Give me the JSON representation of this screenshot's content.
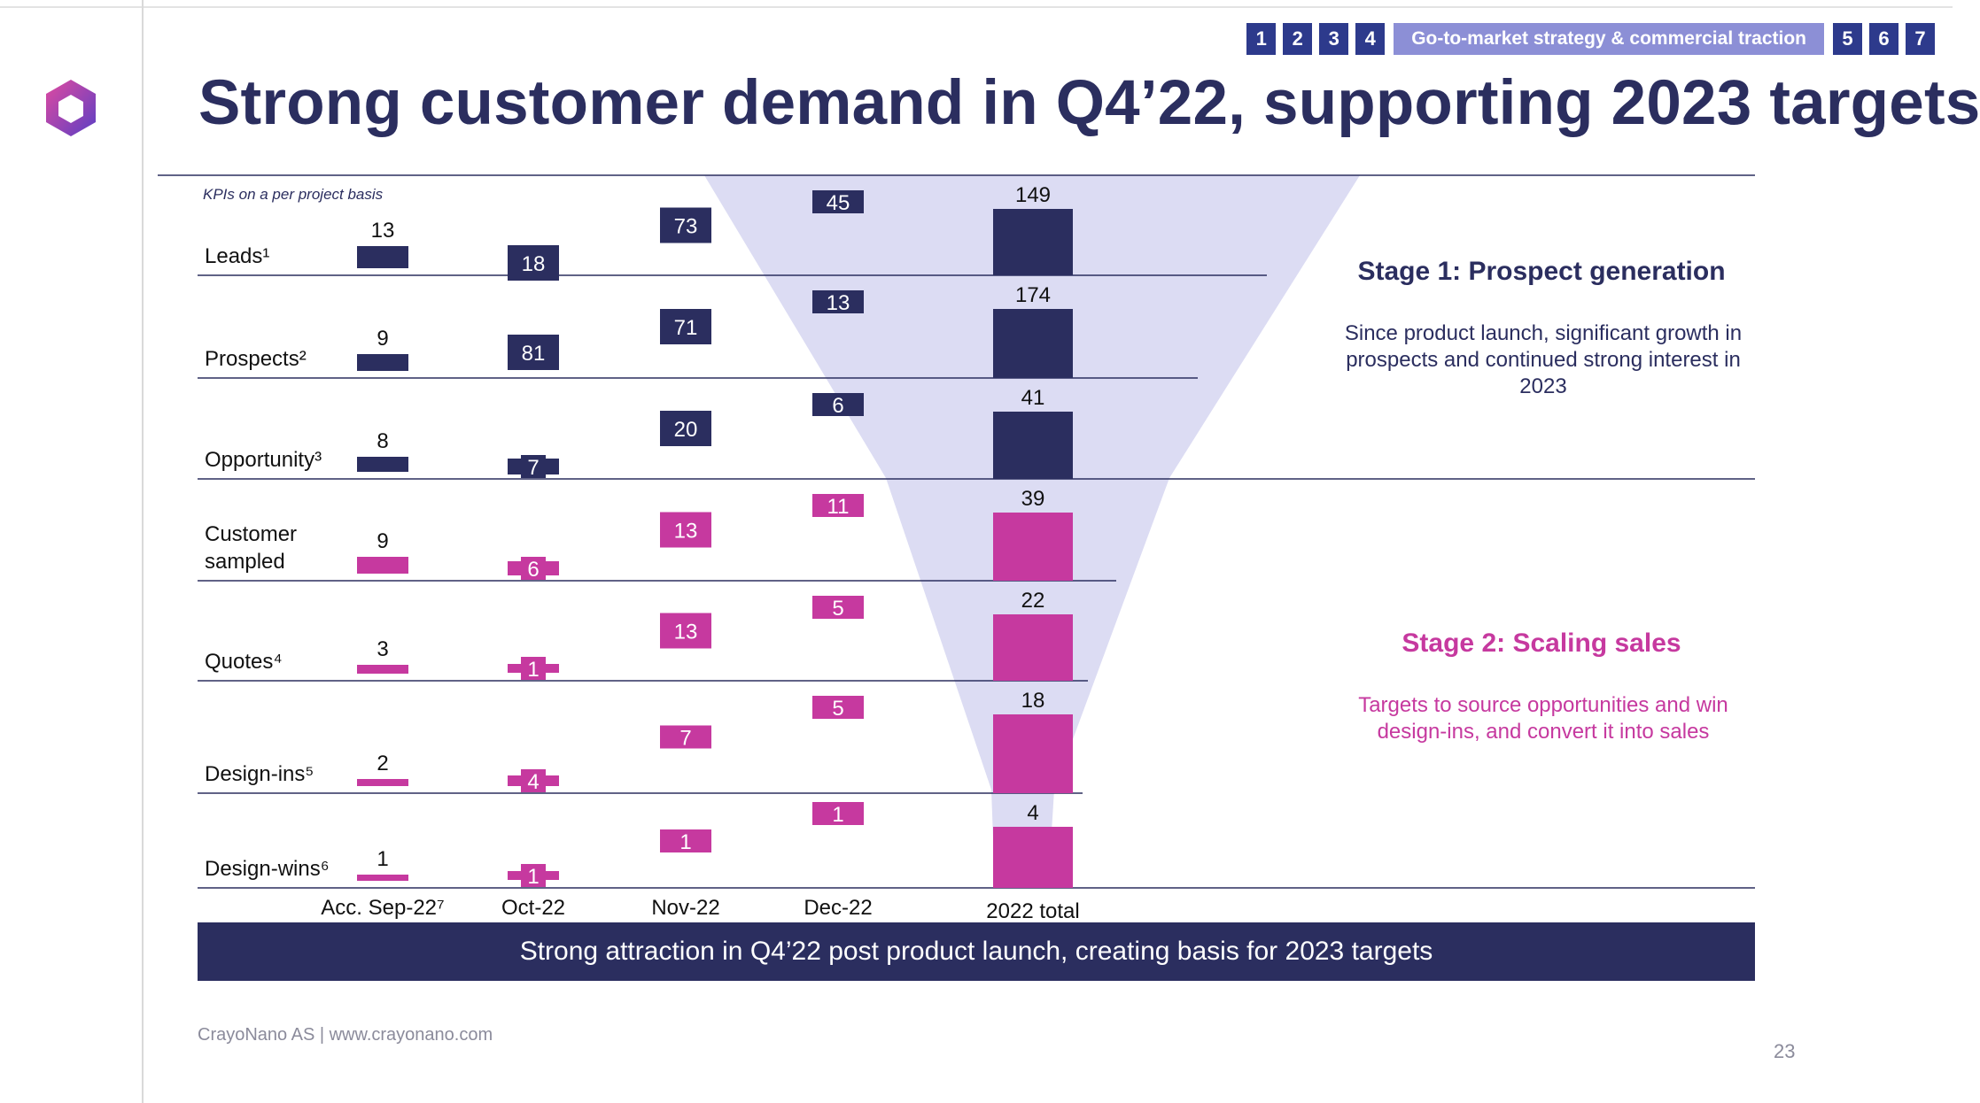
{
  "nav": {
    "numbers_left": [
      "1",
      "2",
      "3",
      "4"
    ],
    "active_label": "Go-to-market strategy & commercial traction",
    "numbers_right": [
      "5",
      "6",
      "7"
    ]
  },
  "title": "Strong customer demand in Q4’22, supporting 2023 targets",
  "chart_data": {
    "type": "bar",
    "subtitle": "KPIs on a per project basis",
    "rows": [
      {
        "label": "Leads¹",
        "stage": 1
      },
      {
        "label": "Prospects²",
        "stage": 1
      },
      {
        "label": "Opportunity³",
        "stage": 1
      },
      {
        "label": "Customer sampled",
        "stage": 2
      },
      {
        "label": "Quotes⁴",
        "stage": 2
      },
      {
        "label": "Design-ins⁵",
        "stage": 2
      },
      {
        "label": "Design-wins⁶",
        "stage": 2
      }
    ],
    "categories": [
      "Acc. Sep-22⁷",
      "Oct-22",
      "Nov-22",
      "Dec-22",
      "2022 total"
    ],
    "series": [
      {
        "name": "Leads¹",
        "values": [
          13,
          18,
          73,
          45,
          149
        ]
      },
      {
        "name": "Prospects²",
        "values": [
          9,
          81,
          71,
          13,
          174
        ]
      },
      {
        "name": "Opportunity³",
        "values": [
          8,
          7,
          20,
          6,
          41
        ]
      },
      {
        "name": "Customer sampled",
        "values": [
          9,
          6,
          13,
          11,
          39
        ]
      },
      {
        "name": "Quotes⁴",
        "values": [
          3,
          1,
          13,
          5,
          22
        ]
      },
      {
        "name": "Design-ins⁵",
        "values": [
          2,
          4,
          7,
          5,
          18
        ]
      },
      {
        "name": "Design-wins⁶",
        "values": [
          1,
          1,
          1,
          1,
          4
        ]
      }
    ],
    "colors": {
      "stage1": "#2b2e5f",
      "stage2": "#c6399f",
      "funnel": "#dcdcf3"
    }
  },
  "stages": [
    {
      "title": "Stage 1: Prospect generation",
      "text": "Since product launch, significant growth in prospects and continued strong interest in 2023",
      "color": "#2b2e5f"
    },
    {
      "title": "Stage 2: Scaling sales",
      "text": "Targets to source opportunities and win design-ins, and convert it into sales",
      "color": "#c6399f"
    }
  ],
  "banner": "Strong attraction in Q4’22 post product launch, creating basis for 2023 targets",
  "footer": "CrayoNano AS | www.crayonano.com",
  "page_number": "23"
}
